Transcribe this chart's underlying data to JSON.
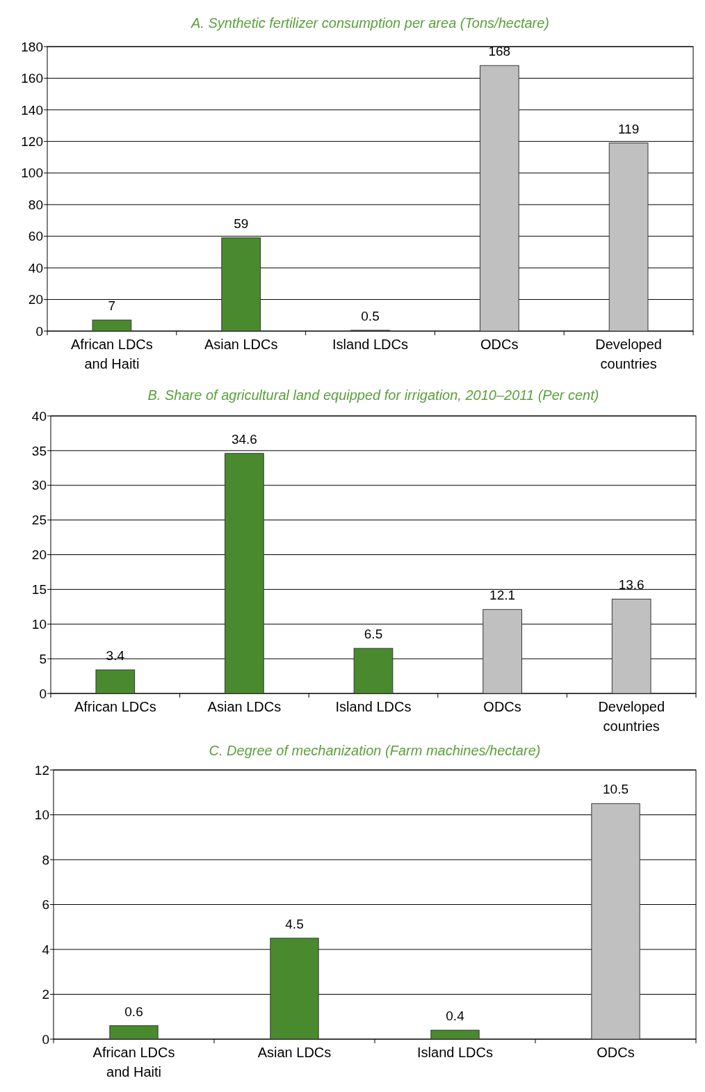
{
  "chart_data": [
    {
      "type": "bar",
      "title": "A. Synthetic fertilizer consumption per area (Tons/hectare)",
      "categories": [
        "African LDCs and Haiti",
        "Asian LDCs",
        "Island LDCs",
        "ODCs",
        "Developed countries"
      ],
      "values": [
        7,
        59,
        0.5,
        168,
        119
      ],
      "colors": [
        "#4a8a2e",
        "#4a8a2e",
        "#4a8a2e",
        "#c0c0c1",
        "#c0c0c1"
      ],
      "ylim": [
        0,
        180
      ],
      "yticks": [
        0,
        20,
        40,
        60,
        80,
        100,
        120,
        140,
        160,
        180
      ],
      "grid": "y",
      "data_labels": true
    },
    {
      "type": "bar",
      "title": "B. Share of agricultural land equipped for irrigation, 2010–2011 (Per cent)",
      "categories": [
        "African LDCs",
        "Asian LDCs",
        "Island LDCs",
        "ODCs",
        "Developed countries"
      ],
      "values": [
        3.4,
        34.6,
        6.5,
        12.1,
        13.6
      ],
      "colors": [
        "#4a8a2e",
        "#4a8a2e",
        "#4a8a2e",
        "#c0c0c1",
        "#c0c0c1"
      ],
      "ylim": [
        0,
        40
      ],
      "yticks": [
        0,
        5,
        10,
        15,
        20,
        25,
        30,
        35,
        40
      ],
      "grid": "y",
      "data_labels": true
    },
    {
      "type": "bar",
      "title": "C. Degree of mechanization (Farm machines/hectare)",
      "categories": [
        "African LDCs and Haiti",
        "Asian LDCs",
        "Island LDCs",
        "ODCs"
      ],
      "values": [
        0.6,
        4.5,
        0.4,
        10.5
      ],
      "colors": [
        "#4a8a2e",
        "#4a8a2e",
        "#4a8a2e",
        "#c0c0c1"
      ],
      "ylim": [
        0,
        12
      ],
      "yticks": [
        0,
        2,
        4,
        6,
        8,
        10,
        12
      ],
      "grid": "y",
      "data_labels": true
    }
  ]
}
